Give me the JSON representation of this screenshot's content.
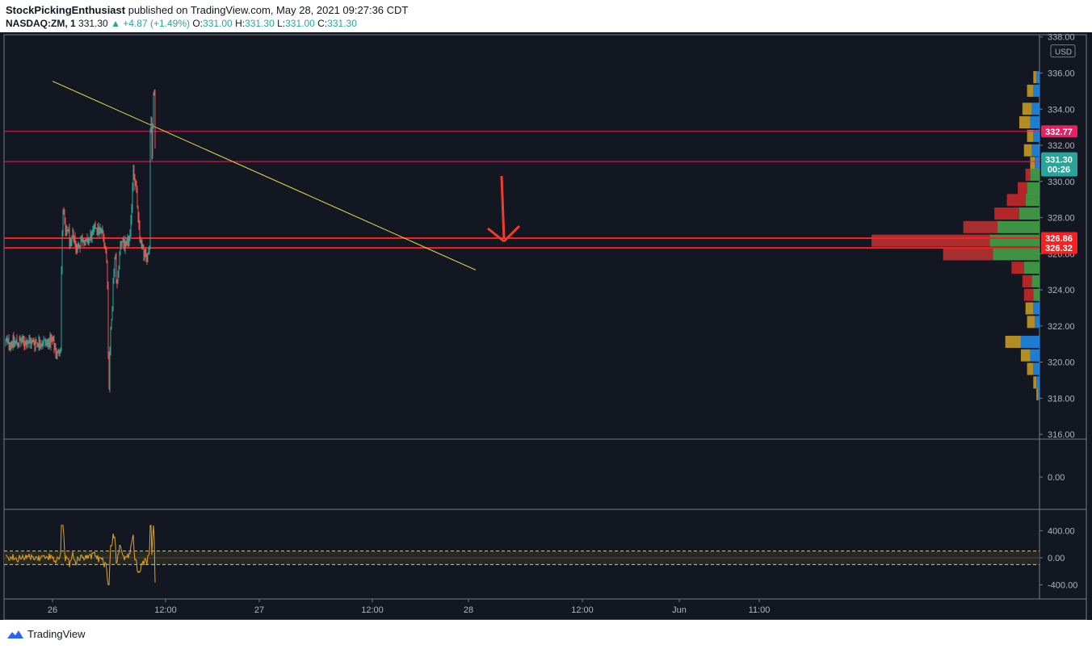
{
  "header": {
    "author": "StockPickingEnthusiast",
    "published_text": "published on TradingView.com, May 28, 2021 09:27:36 CDT",
    "symbol": "NASDAQ:ZM, 1",
    "last": "331.30",
    "change": "▲ +4.87 (+1.49%)",
    "o_label": "O:",
    "o": "331.00",
    "h_label": "H:",
    "h": "331.30",
    "l_label": "L:",
    "l": "331.00",
    "c_label": "C:",
    "c": "331.30"
  },
  "footer": {
    "logo_text": "TradingView"
  },
  "colors": {
    "bg": "#131722",
    "up": "#26a69a",
    "down": "#ef5350",
    "trend": "#f0e14a",
    "hline_thin": "#e91e63",
    "hline_red": "#ff1e1e",
    "arrow": "#f23b2e",
    "osc": "#e3a31d",
    "vp_up": "#2e7d32",
    "vp_down": "#c62828",
    "vp_va_up": "#43a047",
    "vp_va_down": "#b83232",
    "vp_yellow": "#c49a25",
    "vp_blue": "#1e88e5"
  },
  "chart_data": [
    {
      "type": "candlestick",
      "title": "NASDAQ:ZM, 1",
      "currency_label": "USD",
      "ylim": [
        315.6,
        338.3
      ],
      "y_ticks": [
        "338.00",
        "336.00",
        "334.00",
        "332.00",
        "330.00",
        "328.00",
        "326.00",
        "324.00",
        "322.00",
        "320.00",
        "318.00",
        "316.00"
      ],
      "x_ticks": [
        "26",
        "12:00",
        "27",
        "12:00",
        "28",
        "12:00",
        "Jun",
        "11:00"
      ],
      "price_path": [
        {
          "t": 0,
          "p": 321.1
        },
        {
          "t": 0.3,
          "p": 320.7
        },
        {
          "t": 0.6,
          "p": 320.4
        },
        {
          "t": 0.9,
          "p": 320.9
        },
        {
          "t": 1.0,
          "p": 321.1
        },
        {
          "t": 1.0,
          "p": 324.5
        },
        {
          "t": 1.2,
          "p": 328.6
        },
        {
          "t": 1.5,
          "p": 327.0
        },
        {
          "t": 1.8,
          "p": 327.4
        },
        {
          "t": 2.1,
          "p": 326.2
        },
        {
          "t": 2.4,
          "p": 327.3
        },
        {
          "t": 2.7,
          "p": 326.3
        },
        {
          "t": 3.1,
          "p": 326.5
        },
        {
          "t": 3.5,
          "p": 326.9
        },
        {
          "t": 3.9,
          "p": 326.5
        },
        {
          "t": 4.2,
          "p": 326.8
        },
        {
          "t": 4.6,
          "p": 327.0
        },
        {
          "t": 5.0,
          "p": 327.6
        },
        {
          "t": 5.4,
          "p": 327.2
        },
        {
          "t": 5.7,
          "p": 327.3
        },
        {
          "t": 5.95,
          "p": 326.8
        },
        {
          "t": 6.2,
          "p": 326.2
        },
        {
          "t": 6.35,
          "p": 324.6
        },
        {
          "t": 6.45,
          "p": 320.2
        },
        {
          "t": 6.52,
          "p": 318.4
        },
        {
          "t": 6.62,
          "p": 320.5
        },
        {
          "t": 6.75,
          "p": 322.1
        },
        {
          "t": 6.9,
          "p": 322.6
        },
        {
          "t": 7.05,
          "p": 324.8
        },
        {
          "t": 7.25,
          "p": 325.9
        },
        {
          "t": 7.45,
          "p": 324.1
        },
        {
          "t": 7.7,
          "p": 325.6
        },
        {
          "t": 7.9,
          "p": 326.8
        },
        {
          "t": 8.2,
          "p": 326.6
        },
        {
          "t": 8.5,
          "p": 326.3
        },
        {
          "t": 8.75,
          "p": 326.7
        },
        {
          "t": 9.0,
          "p": 326.9
        },
        {
          "t": 9.2,
          "p": 329.2
        },
        {
          "t": 9.35,
          "p": 330.9
        },
        {
          "t": 9.55,
          "p": 329.9
        },
        {
          "t": 9.75,
          "p": 329.3
        },
        {
          "t": 9.9,
          "p": 327.9
        },
        {
          "t": 10.05,
          "p": 327.0
        },
        {
          "t": 10.3,
          "p": 326.5
        },
        {
          "t": 10.55,
          "p": 326.1
        },
        {
          "t": 10.8,
          "p": 325.7
        },
        {
          "t": 11.0,
          "p": 325.9
        },
        {
          "t": 11.2,
          "p": 326.4
        },
        {
          "t": 11.25,
          "p": 326.6
        },
        {
          "t": 11.25,
          "p": 330.8
        },
        {
          "t": 11.35,
          "p": 334.8
        },
        {
          "t": 11.48,
          "p": 331.2
        },
        {
          "t": 11.62,
          "p": 333.8
        },
        {
          "t": 11.75,
          "p": 335.6
        },
        {
          "t": 11.85,
          "p": 332.3
        },
        {
          "t": 11.95,
          "p": 331.3
        }
      ],
      "candle_range_hours": [
        0,
        11.95
      ]
    },
    {
      "type": "volume_profile",
      "bins": [
        {
          "price": 335.75,
          "up": 0.1,
          "down": 0.1,
          "yellow": true
        },
        {
          "price": 335.0,
          "up": 0.2,
          "down": 0.2,
          "yellow": true
        },
        {
          "price": 334.0,
          "up": 0.25,
          "down": 0.3,
          "yellow": true
        },
        {
          "price": 333.25,
          "up": 0.3,
          "down": 0.35,
          "yellow": true
        },
        {
          "price": 332.5,
          "up": 0.2,
          "down": 0.2,
          "yellow": true
        },
        {
          "price": 331.7,
          "up": 0.25,
          "down": 0.25,
          "yellow": true
        },
        {
          "price": 331.0,
          "up": 0.15,
          "down": 0.15,
          "yellow": true
        },
        {
          "price": 330.35,
          "up": 0.3,
          "down": 0.15
        },
        {
          "price": 329.6,
          "up": 0.4,
          "down": 0.3
        },
        {
          "price": 328.95,
          "up": 0.45,
          "down": 0.6
        },
        {
          "price": 328.2,
          "up": 0.65,
          "down": 0.8
        },
        {
          "price": 327.45,
          "up": 1.35,
          "down": 1.1,
          "va": true
        },
        {
          "price": 326.7,
          "up": 1.6,
          "down": 3.8,
          "va": true
        },
        {
          "price": 325.95,
          "up": 1.5,
          "down": 1.6,
          "va": true
        },
        {
          "price": 325.2,
          "up": 0.5,
          "down": 0.4
        },
        {
          "price": 324.45,
          "up": 0.25,
          "down": 0.3
        },
        {
          "price": 323.7,
          "up": 0.2,
          "down": 0.3
        },
        {
          "price": 322.95,
          "up": 0.2,
          "down": 0.25,
          "yellow": true
        },
        {
          "price": 322.2,
          "up": 0.15,
          "down": 0.25,
          "yellow": true
        },
        {
          "price": 321.1,
          "up": 0.6,
          "down": 0.5,
          "yellow": true
        },
        {
          "price": 320.35,
          "up": 0.3,
          "down": 0.3,
          "yellow": true
        },
        {
          "price": 319.6,
          "up": 0.2,
          "down": 0.2,
          "yellow": true
        },
        {
          "price": 318.85,
          "up": 0.1,
          "down": 0.1,
          "yellow": true
        },
        {
          "price": 318.2,
          "up": 0.05,
          "down": 0.05,
          "yellow": true
        }
      ]
    },
    {
      "type": "line",
      "y_ticks": [
        "400.00",
        "0.00",
        "-400.00"
      ],
      "ylim": [
        -460,
        560
      ],
      "band": [
        100,
        -100
      ],
      "series": [
        {
          "values_range": [
            -400,
            480
          ]
        }
      ]
    }
  ],
  "horizontal_levels": [
    {
      "price": 332.77,
      "label": "332.77",
      "style": "thin"
    },
    {
      "price": 331.1,
      "label": "331.10",
      "style": "thin"
    },
    {
      "price": 326.86,
      "label": "326.86",
      "style": "thick"
    },
    {
      "price": 326.32,
      "label": "326.32",
      "style": "thick"
    }
  ],
  "trendline": {
    "start": {
      "t": 0,
      "p": 335.55
    },
    "end": {
      "t": 48.97,
      "p": 325.1
    }
  },
  "current_price_label": {
    "price": "331.30",
    "countdown": "00:26"
  },
  "middle_pane": {
    "tick": "0.00"
  }
}
